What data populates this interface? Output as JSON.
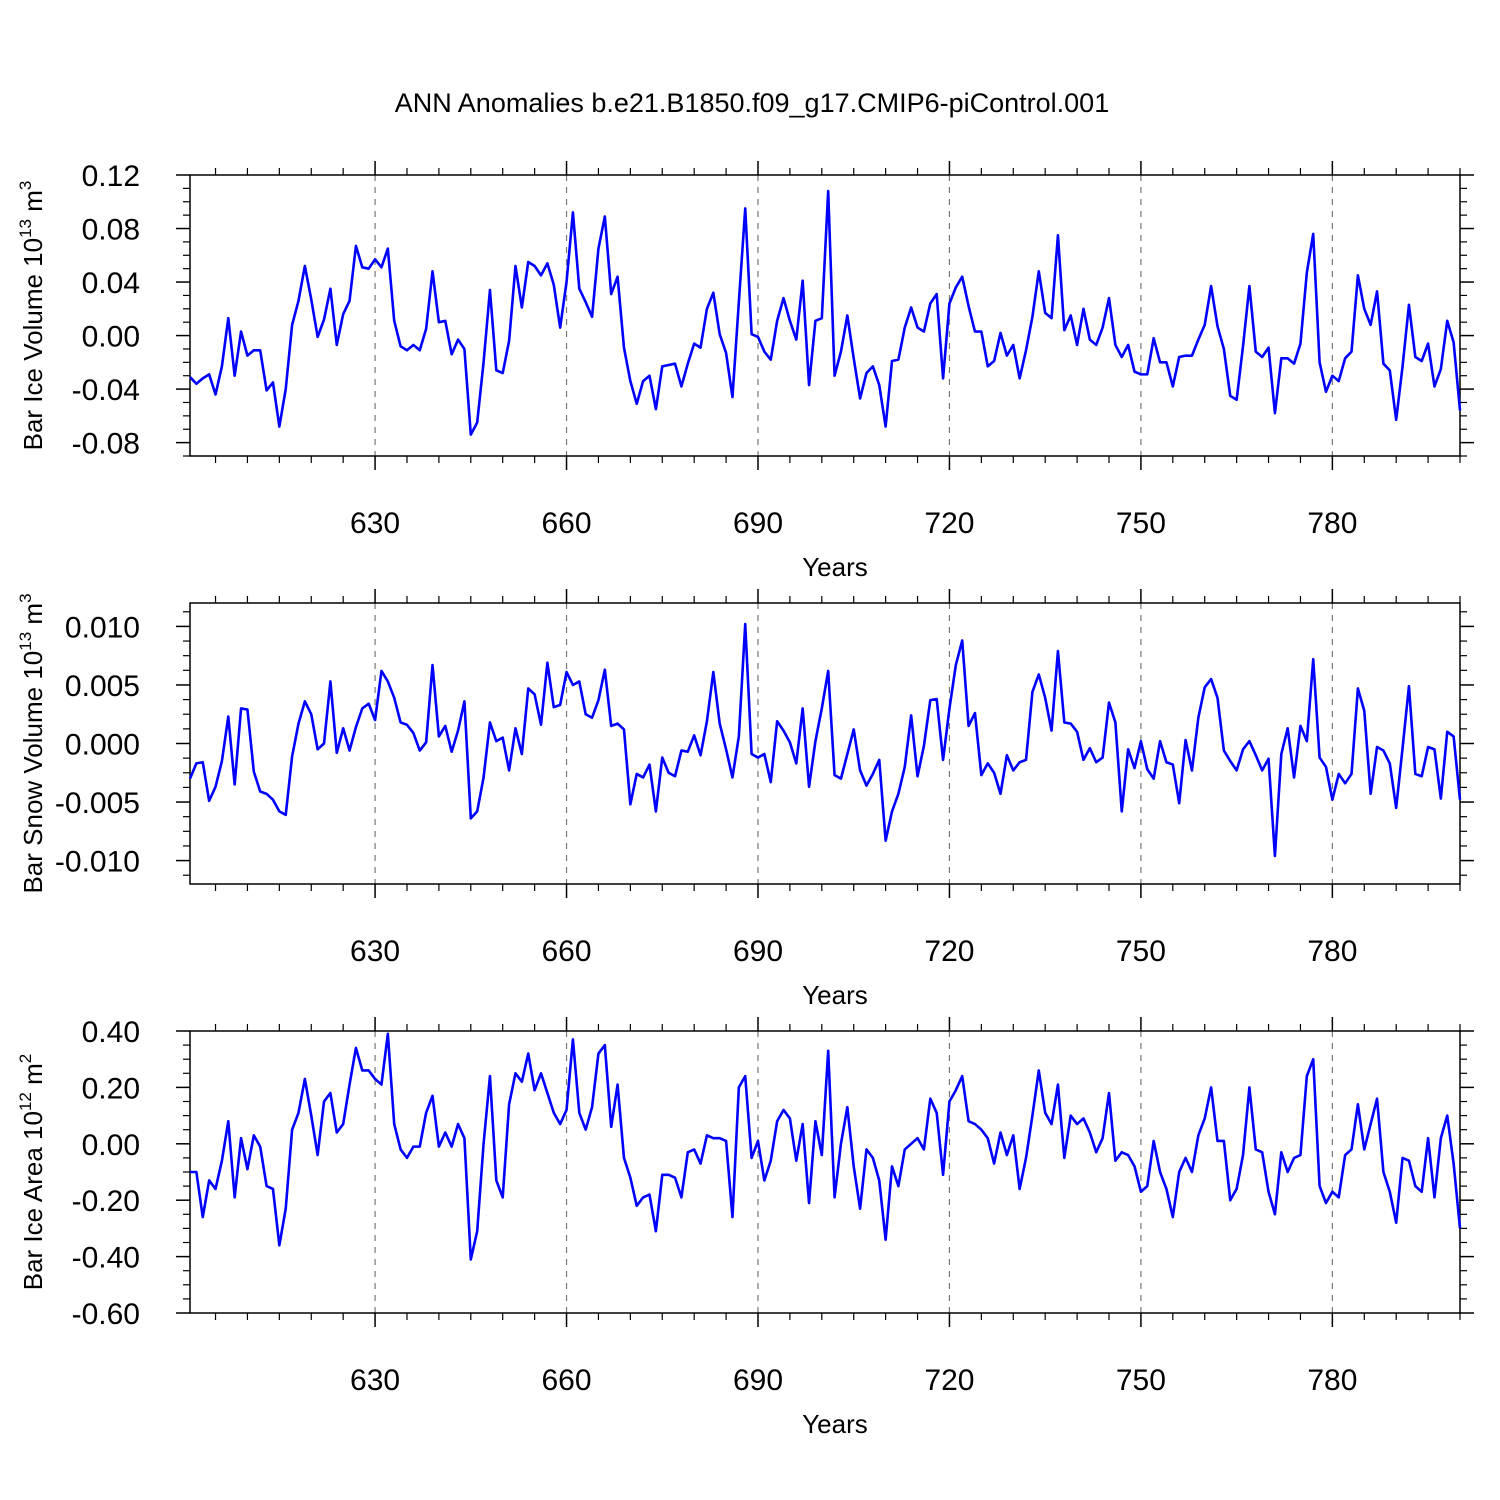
{
  "figure": {
    "title": "ANN Anomalies b.e21.B1850.f09_g17.CMIP6-piControl.001",
    "line_color": "#0000ff",
    "grid_color": "#777777"
  },
  "chart_data": [
    {
      "type": "line",
      "ylabel": "Bar Ice Volume 10",
      "ylabel_exp": "13",
      "ylabel_unit": "m",
      "ylabel_unit_exp": "3",
      "xlabel": "Years",
      "xlim": [
        601,
        800
      ],
      "ylim": [
        -0.09,
        0.12
      ],
      "xticks": [
        630,
        660,
        690,
        720,
        750,
        780
      ],
      "xtick_labels": [
        "630",
        "660",
        "690",
        "720",
        "750",
        "780"
      ],
      "yticks": [
        -0.08,
        -0.04,
        0.0,
        0.04,
        0.08,
        0.12
      ],
      "ytick_labels": [
        "-0.08",
        "-0.04",
        "0.00",
        "0.04",
        "0.08",
        "0.12"
      ],
      "x_start": 601,
      "values": [
        -0.031,
        -0.036,
        -0.032,
        -0.029,
        -0.044,
        -0.023,
        0.013,
        -0.03,
        0.003,
        -0.015,
        -0.011,
        -0.011,
        -0.041,
        -0.035,
        -0.068,
        -0.04,
        0.008,
        0.026,
        0.052,
        0.027,
        -0.001,
        0.012,
        0.035,
        -0.007,
        0.016,
        0.026,
        0.067,
        0.051,
        0.05,
        0.057,
        0.051,
        0.065,
        0.011,
        -0.008,
        -0.011,
        -0.007,
        -0.011,
        0.005,
        0.048,
        0.01,
        0.011,
        -0.014,
        -0.003,
        -0.01,
        -0.074,
        -0.065,
        -0.02,
        0.034,
        -0.026,
        -0.028,
        -0.004,
        0.052,
        0.021,
        0.055,
        0.052,
        0.045,
        0.054,
        0.038,
        0.006,
        0.04,
        0.092,
        0.035,
        0.025,
        0.014,
        0.065,
        0.089,
        0.031,
        0.044,
        -0.009,
        -0.034,
        -0.051,
        -0.034,
        -0.03,
        -0.055,
        -0.023,
        -0.022,
        -0.021,
        -0.038,
        -0.021,
        -0.006,
        -0.009,
        0.02,
        0.032,
        0.001,
        -0.013,
        -0.046,
        0.025,
        0.095,
        0.001,
        -0.001,
        -0.012,
        -0.018,
        0.011,
        0.028,
        0.011,
        -0.003,
        0.041,
        -0.037,
        0.011,
        0.013,
        0.108,
        -0.03,
        -0.012,
        0.015,
        -0.017,
        -0.047,
        -0.028,
        -0.023,
        -0.037,
        -0.068,
        -0.019,
        -0.018,
        0.006,
        0.021,
        0.006,
        0.003,
        0.024,
        0.031,
        -0.032,
        0.024,
        0.036,
        0.044,
        0.022,
        0.003,
        0.003,
        -0.023,
        -0.019,
        0.002,
        -0.015,
        -0.007,
        -0.032,
        -0.011,
        0.014,
        0.048,
        0.017,
        0.013,
        0.075,
        0.004,
        0.015,
        -0.007,
        0.02,
        -0.003,
        -0.007,
        0.006,
        0.028,
        -0.007,
        -0.016,
        -0.007,
        -0.027,
        -0.029,
        -0.029,
        -0.002,
        -0.02,
        -0.02,
        -0.038,
        -0.016,
        -0.015,
        -0.015,
        -0.003,
        0.008,
        0.037,
        0.007,
        -0.01,
        -0.045,
        -0.048,
        -0.008,
        0.037,
        -0.012,
        -0.016,
        -0.009,
        -0.058,
        -0.017,
        -0.017,
        -0.021,
        -0.006,
        0.047,
        0.076,
        -0.02,
        -0.042,
        -0.03,
        -0.034,
        -0.017,
        -0.012,
        0.045,
        0.02,
        0.008,
        0.033,
        -0.021,
        -0.026,
        -0.063,
        -0.023,
        0.023,
        -0.016,
        -0.019,
        -0.006,
        -0.038,
        -0.025,
        0.011,
        -0.005,
        -0.056
      ]
    },
    {
      "type": "line",
      "ylabel": "Bar Snow Volume 10",
      "ylabel_exp": "13",
      "ylabel_unit": "m",
      "ylabel_unit_exp": "3",
      "xlabel": "Years",
      "xlim": [
        601,
        800
      ],
      "ylim": [
        -0.012,
        0.012
      ],
      "xticks": [
        630,
        660,
        690,
        720,
        750,
        780
      ],
      "xtick_labels": [
        "630",
        "660",
        "690",
        "720",
        "750",
        "780"
      ],
      "yticks": [
        -0.01,
        -0.005,
        0.0,
        0.005,
        0.01
      ],
      "ytick_labels": [
        "-0.010",
        "-0.005",
        "0.000",
        "0.005",
        "0.010"
      ],
      "x_start": 601,
      "values": [
        -0.003,
        -0.0017,
        -0.0016,
        -0.0049,
        -0.0037,
        -0.0015,
        0.0023,
        -0.0035,
        0.003,
        0.0029,
        -0.0024,
        -0.0041,
        -0.0043,
        -0.0048,
        -0.0058,
        -0.0061,
        -0.0011,
        0.0017,
        0.0036,
        0.0025,
        -0.0005,
        0.0,
        0.0053,
        -0.0008,
        0.0013,
        -0.0006,
        0.0014,
        0.003,
        0.0034,
        0.002,
        0.0062,
        0.0053,
        0.0039,
        0.0018,
        0.0016,
        0.0009,
        -0.0006,
        0.0001,
        0.0067,
        0.0006,
        0.0015,
        -0.0007,
        0.0011,
        0.0036,
        -0.0064,
        -0.0058,
        -0.0029,
        0.0018,
        0.0002,
        0.0005,
        -0.0023,
        0.0013,
        -0.0009,
        0.0047,
        0.0042,
        0.0016,
        0.0069,
        0.0031,
        0.0033,
        0.0061,
        0.005,
        0.0053,
        0.0025,
        0.0022,
        0.0037,
        0.0063,
        0.0015,
        0.0017,
        0.0012,
        -0.0052,
        -0.0026,
        -0.0029,
        -0.0018,
        -0.0058,
        -0.0012,
        -0.0025,
        -0.0028,
        -0.0006,
        -0.0007,
        0.0007,
        -0.001,
        0.0019,
        0.0061,
        0.0017,
        -0.0005,
        -0.0029,
        0.0006,
        0.0102,
        -0.0009,
        -0.0012,
        -0.0009,
        -0.0033,
        0.0019,
        0.0011,
        0.0001,
        -0.0017,
        0.003,
        -0.0037,
        0.0002,
        0.003,
        0.0062,
        -0.0027,
        -0.003,
        -0.0009,
        0.0012,
        -0.0023,
        -0.0036,
        -0.0026,
        -0.0014,
        -0.0083,
        -0.0058,
        -0.0043,
        -0.002,
        0.0024,
        -0.0028,
        -0.0002,
        0.0037,
        0.0038,
        -0.0014,
        0.003,
        0.0067,
        0.0088,
        0.0015,
        0.0026,
        -0.0027,
        -0.0017,
        -0.0025,
        -0.0043,
        -0.001,
        -0.0023,
        -0.0016,
        -0.0014,
        0.0044,
        0.0059,
        0.0039,
        0.0011,
        0.0079,
        0.0018,
        0.0017,
        0.001,
        -0.0014,
        -0.0004,
        -0.0016,
        -0.0012,
        0.0035,
        0.0018,
        -0.0058,
        -0.0005,
        -0.0021,
        0.0002,
        -0.0022,
        -0.003,
        0.0002,
        -0.0016,
        -0.0018,
        -0.0051,
        0.0003,
        -0.0023,
        0.0022,
        0.0048,
        0.0055,
        0.0039,
        -0.0006,
        -0.0015,
        -0.0023,
        -0.0005,
        0.0002,
        -0.001,
        -0.0023,
        -0.0013,
        -0.0096,
        -0.0009,
        0.0013,
        -0.0029,
        0.0015,
        0.0002,
        0.0072,
        -0.0012,
        -0.002,
        -0.0048,
        -0.0026,
        -0.0034,
        -0.0026,
        0.0047,
        0.0028,
        -0.0043,
        -0.0003,
        -0.0006,
        -0.0017,
        -0.0055,
        -0.0004,
        0.0049,
        -0.0026,
        -0.0028,
        -0.0003,
        -0.0005,
        -0.0047,
        0.001,
        0.0006,
        -0.0048
      ]
    },
    {
      "type": "line",
      "ylabel": "Bar Ice Area 10",
      "ylabel_exp": "12",
      "ylabel_unit": "m",
      "ylabel_unit_exp": "2",
      "xlabel": "Years",
      "xlim": [
        601,
        800
      ],
      "ylim": [
        -0.6,
        0.4
      ],
      "xticks": [
        630,
        660,
        690,
        720,
        750,
        780
      ],
      "xtick_labels": [
        "630",
        "660",
        "690",
        "720",
        "750",
        "780"
      ],
      "yticks": [
        -0.6,
        -0.4,
        -0.2,
        0.0,
        0.2,
        0.4
      ],
      "ytick_labels": [
        "-0.60",
        "-0.40",
        "-0.20",
        "0.00",
        "0.20",
        "0.40"
      ],
      "x_start": 601,
      "values": [
        -0.1,
        -0.1,
        -0.26,
        -0.13,
        -0.16,
        -0.06,
        0.08,
        -0.19,
        0.02,
        -0.09,
        0.03,
        -0.01,
        -0.15,
        -0.16,
        -0.36,
        -0.23,
        0.05,
        0.11,
        0.23,
        0.1,
        -0.04,
        0.15,
        0.18,
        0.04,
        0.07,
        0.21,
        0.34,
        0.26,
        0.26,
        0.23,
        0.21,
        0.39,
        0.07,
        -0.02,
        -0.05,
        -0.01,
        -0.01,
        0.11,
        0.17,
        -0.01,
        0.04,
        -0.01,
        0.07,
        0.02,
        -0.41,
        -0.31,
        0.0,
        0.24,
        -0.13,
        -0.19,
        0.14,
        0.25,
        0.22,
        0.32,
        0.19,
        0.25,
        0.18,
        0.11,
        0.07,
        0.12,
        0.37,
        0.11,
        0.05,
        0.13,
        0.32,
        0.35,
        0.06,
        0.21,
        -0.05,
        -0.12,
        -0.22,
        -0.19,
        -0.18,
        -0.31,
        -0.11,
        -0.11,
        -0.12,
        -0.19,
        -0.03,
        -0.02,
        -0.07,
        0.03,
        0.02,
        0.02,
        0.01,
        -0.26,
        0.2,
        0.24,
        -0.05,
        0.01,
        -0.13,
        -0.06,
        0.08,
        0.12,
        0.09,
        -0.06,
        0.07,
        -0.21,
        0.08,
        -0.04,
        0.33,
        -0.19,
        0.0,
        0.13,
        -0.08,
        -0.23,
        -0.02,
        -0.05,
        -0.13,
        -0.34,
        -0.08,
        -0.15,
        -0.02,
        0.0,
        0.02,
        -0.02,
        0.16,
        0.11,
        -0.11,
        0.15,
        0.19,
        0.24,
        0.08,
        0.07,
        0.05,
        0.02,
        -0.07,
        0.04,
        -0.04,
        0.03,
        -0.16,
        -0.05,
        0.1,
        0.26,
        0.11,
        0.07,
        0.21,
        -0.05,
        0.1,
        0.07,
        0.09,
        0.04,
        -0.03,
        0.02,
        0.18,
        -0.06,
        -0.03,
        -0.04,
        -0.08,
        -0.17,
        -0.15,
        0.01,
        -0.1,
        -0.16,
        -0.26,
        -0.1,
        -0.05,
        -0.1,
        0.03,
        0.09,
        0.2,
        0.01,
        0.01,
        -0.2,
        -0.16,
        -0.04,
        0.2,
        -0.02,
        -0.03,
        -0.17,
        -0.25,
        -0.03,
        -0.1,
        -0.05,
        -0.04,
        0.24,
        0.3,
        -0.15,
        -0.21,
        -0.17,
        -0.19,
        -0.04,
        -0.02,
        0.14,
        -0.02,
        0.07,
        0.16,
        -0.1,
        -0.17,
        -0.28,
        -0.05,
        -0.06,
        -0.15,
        -0.17,
        0.02,
        -0.19,
        0.02,
        0.1,
        -0.07,
        -0.3
      ]
    }
  ]
}
